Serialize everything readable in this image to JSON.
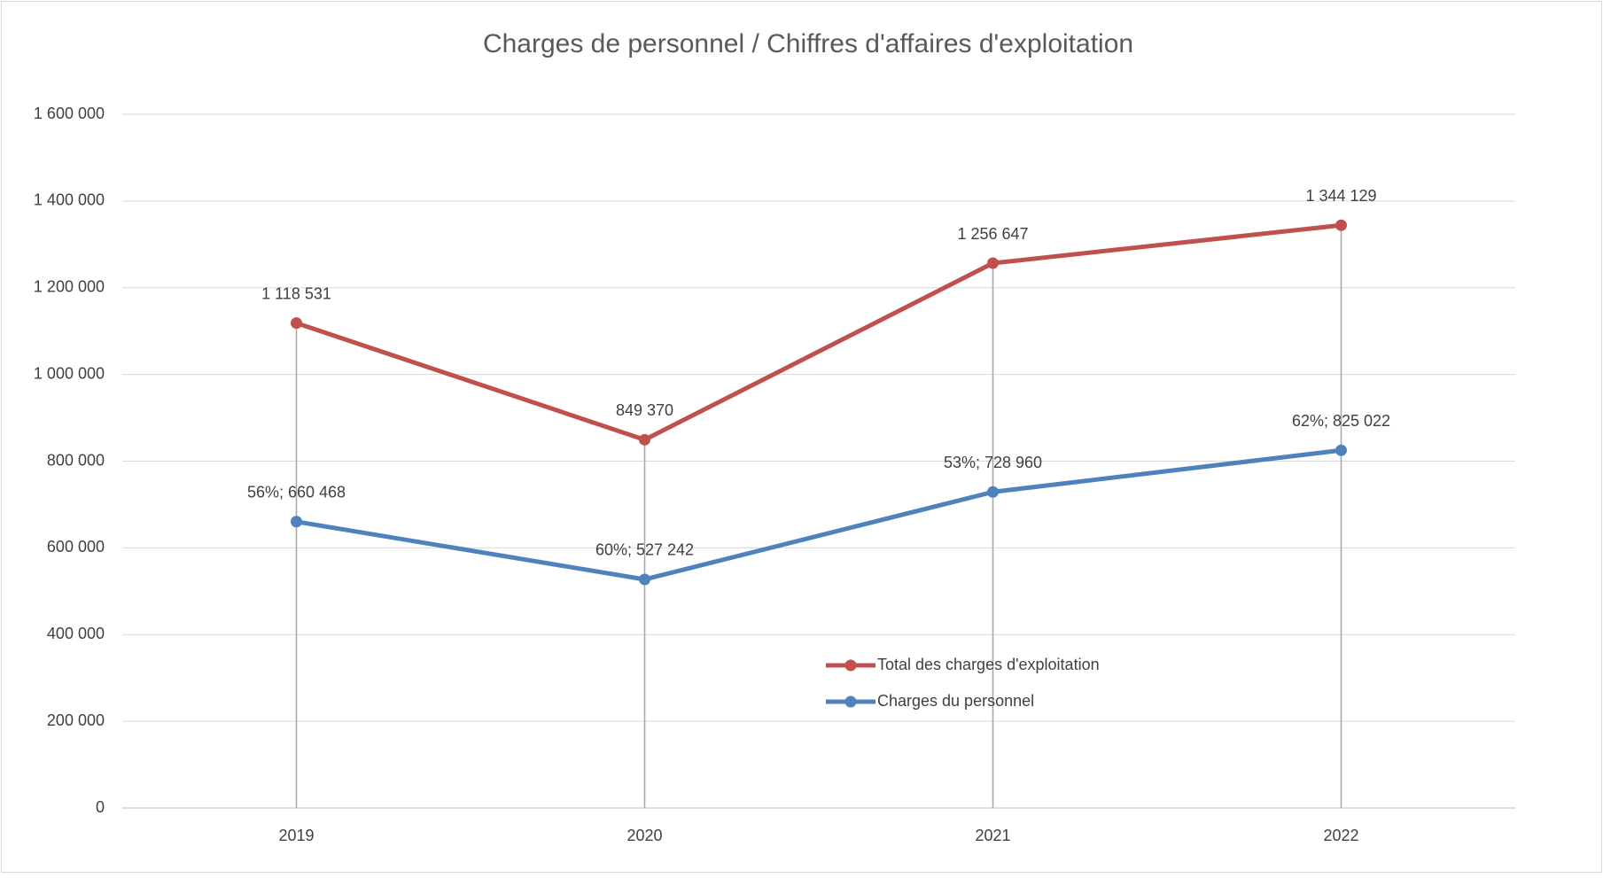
{
  "chart_data": {
    "type": "line",
    "title": "Charges de personnel / Chiffres d'affaires d'exploitation",
    "categories": [
      "2019",
      "2020",
      "2021",
      "2022"
    ],
    "series": [
      {
        "name": "Total des charges d'exploitation",
        "color": "#c0504d",
        "values": [
          1118531,
          849370,
          1256647,
          1344129
        ],
        "value_labels": [
          "1 118 531",
          "849 370",
          "1 256 647",
          "1 344 129"
        ]
      },
      {
        "name": "Charges du personnel",
        "color": "#4f81bd",
        "values": [
          660468,
          527242,
          728960,
          825022
        ],
        "value_labels": [
          "56%; 660 468",
          "60%; 527 242",
          "53%; 728 960",
          "62%; 825 022"
        ]
      }
    ],
    "ylim": [
      0,
      1600000
    ],
    "yticks": [
      0,
      {
        "value": 200000,
        "label": "200 000"
      },
      {
        "value": 400000,
        "label": "400 000"
      },
      {
        "value": 600000,
        "label": "600 000"
      },
      {
        "value": 800000,
        "label": "800 000"
      },
      {
        "value": 1000000,
        "label": "1 000 000"
      },
      {
        "value": 1200000,
        "label": "1 200 000"
      },
      {
        "value": 1400000,
        "label": "1 400 000"
      },
      {
        "value": 1600000,
        "label": "1 600 000"
      }
    ],
    "grid": true,
    "drop_lines": true
  }
}
